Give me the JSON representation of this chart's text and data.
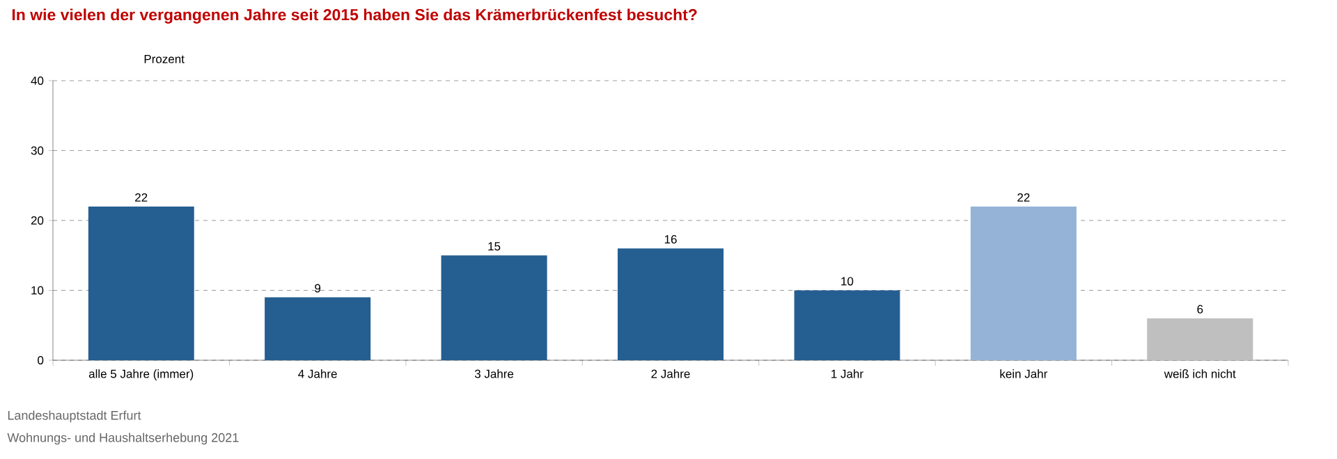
{
  "chart_data": {
    "type": "bar",
    "title": "In wie vielen der vergangenen Jahre seit 2015 haben Sie das Krämerbrückenfest besucht?",
    "ylabel": "Prozent",
    "categories": [
      "alle 5 Jahre (immer)",
      "4 Jahre",
      "3 Jahre",
      "2 Jahre",
      "1 Jahr",
      "kein Jahr",
      "weiß ich nicht"
    ],
    "values": [
      22,
      9,
      15,
      16,
      10,
      22,
      6
    ],
    "colors": [
      "#255e91",
      "#255e91",
      "#255e91",
      "#255e91",
      "#255e91",
      "#95b3d7",
      "#bfbfbf"
    ],
    "ylim": [
      0,
      40
    ],
    "yticks": [
      0,
      10,
      20,
      30,
      40
    ],
    "grid": "y",
    "data_labels": true,
    "annotations": [
      "Landeshauptstadt Erfurt",
      "Wohnungs- und Haushaltserhebung 2021"
    ]
  }
}
